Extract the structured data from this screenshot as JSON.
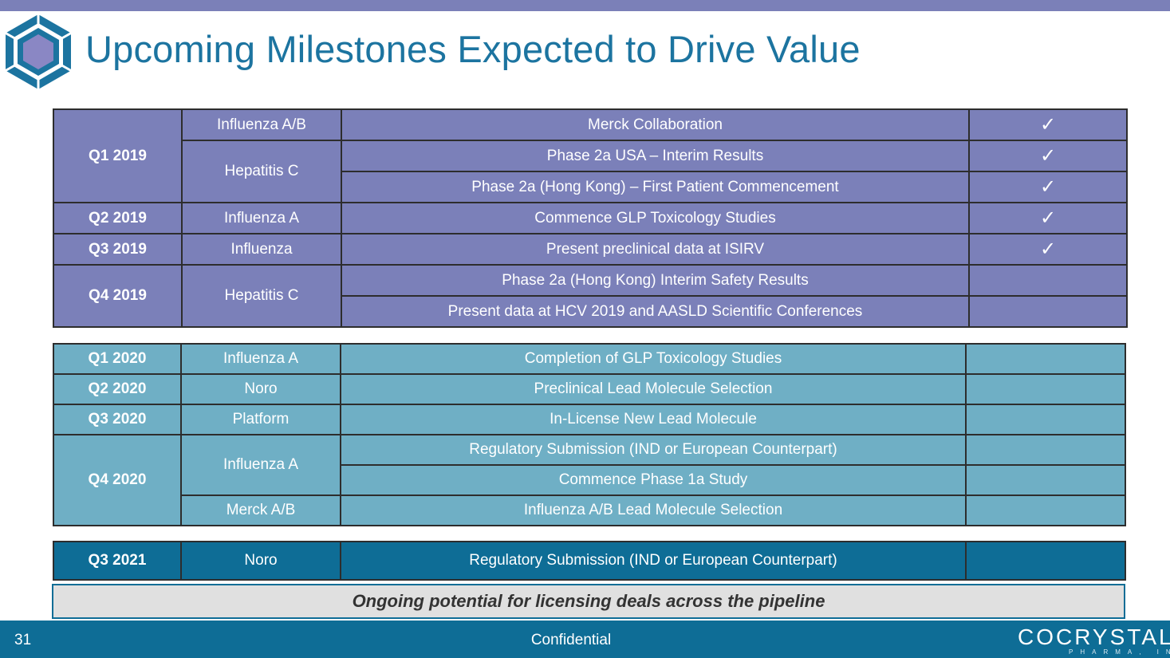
{
  "title": "Upcoming Milestones Expected to Drive Value",
  "check_mark": "✓",
  "table_2019": {
    "rows": [
      {
        "quarter": "Q1 2019",
        "indication": "Influenza A/B",
        "milestone": "Merck Collaboration",
        "status": "✓"
      },
      {
        "indication": "Hepatitis C",
        "milestone": "Phase 2a USA – Interim Results",
        "status": "✓"
      },
      {
        "milestone": "Phase 2a (Hong Kong) – First Patient Commencement",
        "status": "✓"
      },
      {
        "quarter": "Q2 2019",
        "indication": "Influenza A",
        "milestone": "Commence GLP Toxicology Studies",
        "status": "✓"
      },
      {
        "quarter": "Q3 2019",
        "indication": "Influenza",
        "milestone": "Present preclinical data at ISIRV",
        "status": "✓"
      },
      {
        "quarter": "Q4 2019",
        "indication": "Hepatitis C",
        "milestone": "Phase 2a (Hong Kong) Interim Safety Results",
        "status": ""
      },
      {
        "milestone": "Present data at HCV 2019 and AASLD Scientific Conferences",
        "status": ""
      }
    ]
  },
  "table_2020": {
    "rows": [
      {
        "quarter": "Q1 2020",
        "indication": "Influenza A",
        "milestone": "Completion of GLP Toxicology Studies",
        "status": ""
      },
      {
        "quarter": "Q2 2020",
        "indication": "Noro",
        "milestone": "Preclinical Lead Molecule Selection",
        "status": ""
      },
      {
        "quarter": "Q3 2020",
        "indication": "Platform",
        "milestone": "In-License New Lead Molecule",
        "status": ""
      },
      {
        "quarter": "Q4 2020",
        "indication": "Influenza A",
        "milestone": "Regulatory Submission (IND or European Counterpart)",
        "status": ""
      },
      {
        "milestone": "Commence Phase 1a Study",
        "status": ""
      },
      {
        "indication": "Merck A/B",
        "milestone": "Influenza A/B Lead Molecule Selection",
        "status": ""
      }
    ]
  },
  "table_2021": {
    "rows": [
      {
        "quarter": "Q3 2021",
        "indication": "Noro",
        "milestone": "Regulatory Submission (IND or European Counterpart)",
        "status": ""
      }
    ]
  },
  "ongoing_note": "Ongoing potential for licensing deals across the pipeline",
  "footer": {
    "page_number": "31",
    "label": "Confidential",
    "brand_name": "COCRYSTAL",
    "brand_sub": "PHARMA, INC"
  },
  "colors": {
    "header_bar": "#7b80b8",
    "title": "#1c74a0",
    "rows_2019": "#7b80b9",
    "rows_2020": "#6fafc5",
    "rows_2021": "#0e6d96",
    "footer": "#0e6d96"
  }
}
